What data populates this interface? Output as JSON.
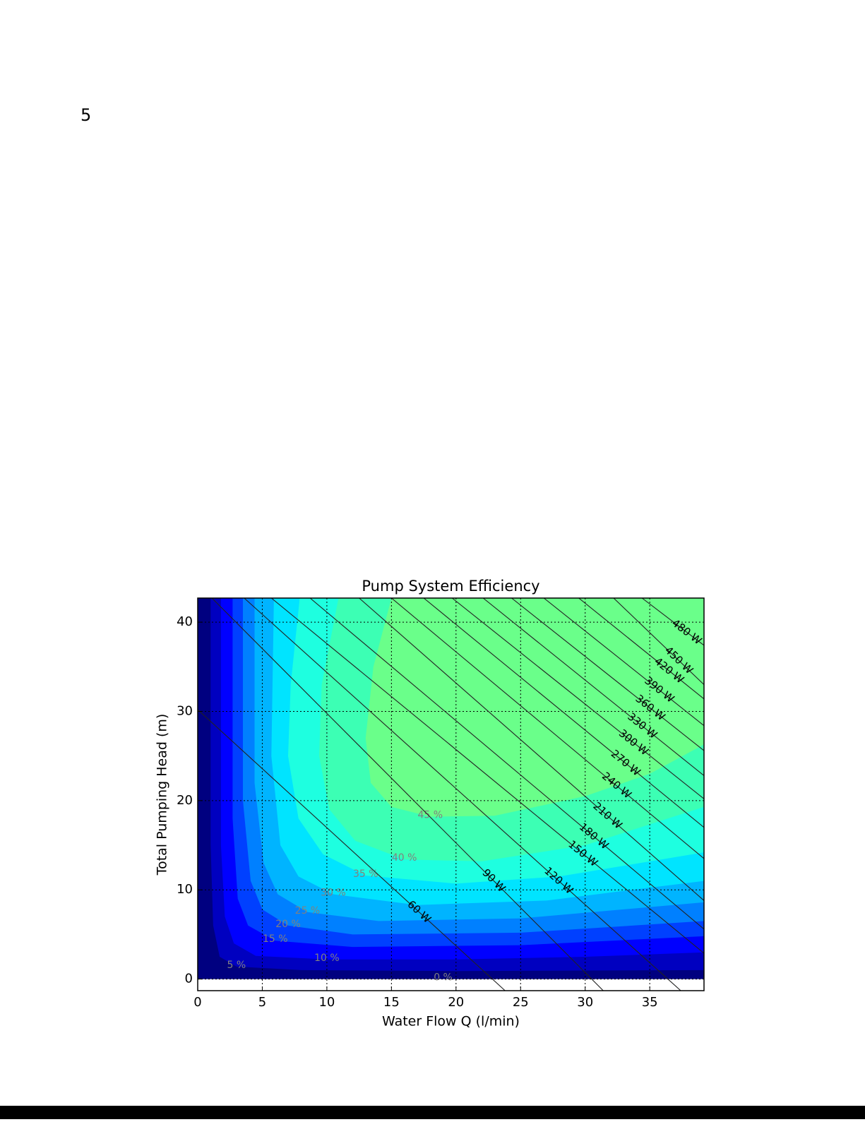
{
  "page_number": "5",
  "chart_data": {
    "type": "contour",
    "title": "Pump System Efficiency",
    "x_label": "Water Flow Q (l/min)",
    "y_label": "Total Pumping Head (m)",
    "xlim": [
      0,
      39.2
    ],
    "ylim": [
      -1.3,
      42.7
    ],
    "xticks": [
      0,
      5,
      10,
      15,
      20,
      25,
      30,
      35
    ],
    "yticks": [
      0,
      10,
      20,
      30,
      40
    ],
    "grid": true,
    "fills": [
      {
        "level": 0,
        "label": "0 %",
        "color": "#000080",
        "x": [
          0,
          0,
          19,
          39.2,
          39.2
        ],
        "y": [
          42.7,
          0,
          0,
          0,
          42.7
        ]
      },
      {
        "level": 5,
        "label": "5 %",
        "color": "#0000c0",
        "x": [
          1.0,
          1.0,
          1.2,
          1.7,
          3,
          8,
          20,
          39.2,
          39.2
        ],
        "y": [
          42.7,
          15,
          6,
          2.5,
          1.4,
          1.0,
          0.9,
          1.0,
          42.7
        ]
      },
      {
        "level": 10,
        "label": "10 %",
        "color": "#0000ff",
        "x": [
          1.8,
          1.8,
          2.1,
          2.8,
          4.5,
          10,
          20,
          30,
          39.2,
          39.2
        ],
        "y": [
          42.7,
          15,
          7,
          4,
          2.6,
          2.2,
          2.2,
          2.5,
          3.0,
          42.7
        ]
      },
      {
        "level": 15,
        "label": "15 %",
        "color": "#0040ff",
        "x": [
          2.7,
          2.7,
          3.1,
          3.9,
          6,
          12,
          25,
          39.2,
          39.2
        ],
        "y": [
          42.7,
          18,
          9,
          6,
          4.3,
          3.6,
          3.8,
          4.8,
          42.7
        ]
      },
      {
        "level": 20,
        "label": "20 %",
        "color": "#0080ff",
        "x": [
          3.5,
          3.5,
          4.1,
          5,
          7,
          12,
          25,
          39.2,
          39.2
        ],
        "y": [
          42.7,
          20,
          11,
          7.8,
          6,
          5.0,
          5.2,
          6.5,
          42.7
        ]
      },
      {
        "level": 25,
        "label": "25 %",
        "color": "#00b4ff",
        "x": [
          4.4,
          4.4,
          5.1,
          6.2,
          8.5,
          14,
          25,
          39.2,
          39.2
        ],
        "y": [
          42.7,
          22,
          13,
          9.5,
          7.5,
          6.5,
          6.8,
          8.6,
          42.7
        ]
      },
      {
        "level": 30,
        "label": "30 %",
        "color": "#00e4ff",
        "x": [
          5.9,
          5.7,
          6.4,
          7.8,
          10.5,
          17,
          27,
          39.2,
          39.2
        ],
        "y": [
          42.7,
          25,
          15,
          11.5,
          9.5,
          8.3,
          8.8,
          11,
          42.7
        ]
      },
      {
        "level": 35,
        "label": "35 %",
        "color": "#1effe0",
        "x": [
          7.9,
          7.2,
          7.0,
          7.8,
          9.7,
          13,
          20,
          28,
          39.2,
          39.2
        ],
        "y": [
          42.7,
          33,
          25,
          18,
          14,
          11.6,
          10.7,
          11.5,
          14.2,
          42.7
        ]
      },
      {
        "level": 40,
        "label": "40 %",
        "color": "#3cffb4",
        "x": [
          10.9,
          9.6,
          9.4,
          10.2,
          12.2,
          16,
          22,
          30,
          39.2,
          39.2
        ],
        "y": [
          42.7,
          33,
          25,
          19,
          15.5,
          13.4,
          13.2,
          15,
          19.3,
          42.7
        ]
      },
      {
        "level": 45,
        "label": "45 %",
        "color": "#6aff8a",
        "x": [
          15.0,
          13.6,
          13.0,
          13.4,
          15,
          18,
          23,
          30,
          35,
          39.2,
          39.2
        ],
        "y": [
          42.7,
          35,
          27,
          22,
          19.3,
          18.2,
          18.3,
          20.5,
          23,
          26.3,
          42.7
        ]
      }
    ],
    "power_lines": [
      {
        "level": 60,
        "label": "60 W",
        "x": [
          0,
          23.8
        ],
        "y": [
          30.2,
          -1.3
        ]
      },
      {
        "level": 90,
        "label": "90 W",
        "x": [
          1.1,
          31.4
        ],
        "y": [
          42.7,
          -1.3
        ]
      },
      {
        "level": 120,
        "label": "120 W",
        "x": [
          3.6,
          37.4
        ],
        "y": [
          42.7,
          -1.3
        ]
      },
      {
        "level": 150,
        "label": "150 W",
        "x": [
          5.7,
          39.2
        ],
        "y": [
          42.7,
          2.9
        ]
      },
      {
        "level": 180,
        "label": "180 W",
        "x": [
          8.7,
          39.2
        ],
        "y": [
          42.7,
          5.6
        ]
      },
      {
        "level": 210,
        "label": "210 W",
        "x": [
          12.5,
          39.2
        ],
        "y": [
          42.7,
          8.8
        ]
      },
      {
        "level": 240,
        "label": "240 W",
        "x": [
          15.0,
          39.2
        ],
        "y": [
          42.7,
          13.5
        ]
      },
      {
        "level": 270,
        "label": "270 W",
        "x": [
          17.5,
          39.2
        ],
        "y": [
          42.7,
          17.0
        ]
      },
      {
        "level": 300,
        "label": "300 W",
        "x": [
          19.7,
          39.2
        ],
        "y": [
          42.7,
          20.2
        ]
      },
      {
        "level": 330,
        "label": "330 W",
        "x": [
          22.1,
          39.2
        ],
        "y": [
          42.7,
          22.8
        ]
      },
      {
        "level": 360,
        "label": "360 W",
        "x": [
          24.3,
          39.2
        ],
        "y": [
          42.7,
          25.6
        ]
      },
      {
        "level": 390,
        "label": "390 W",
        "x": [
          26.8,
          39.2
        ],
        "y": [
          42.7,
          28.4
        ]
      },
      {
        "level": 420,
        "label": "420 W",
        "x": [
          29.5,
          39.2
        ],
        "y": [
          42.7,
          31.4
        ]
      },
      {
        "level": 450,
        "label": "450 W",
        "x": [
          32.2,
          39.2
        ],
        "y": [
          42.7,
          33.0
        ]
      },
      {
        "level": 480,
        "label": "480 W",
        "x": [
          34.4,
          39.2
        ],
        "y": [
          42.7,
          37.4
        ]
      }
    ]
  }
}
